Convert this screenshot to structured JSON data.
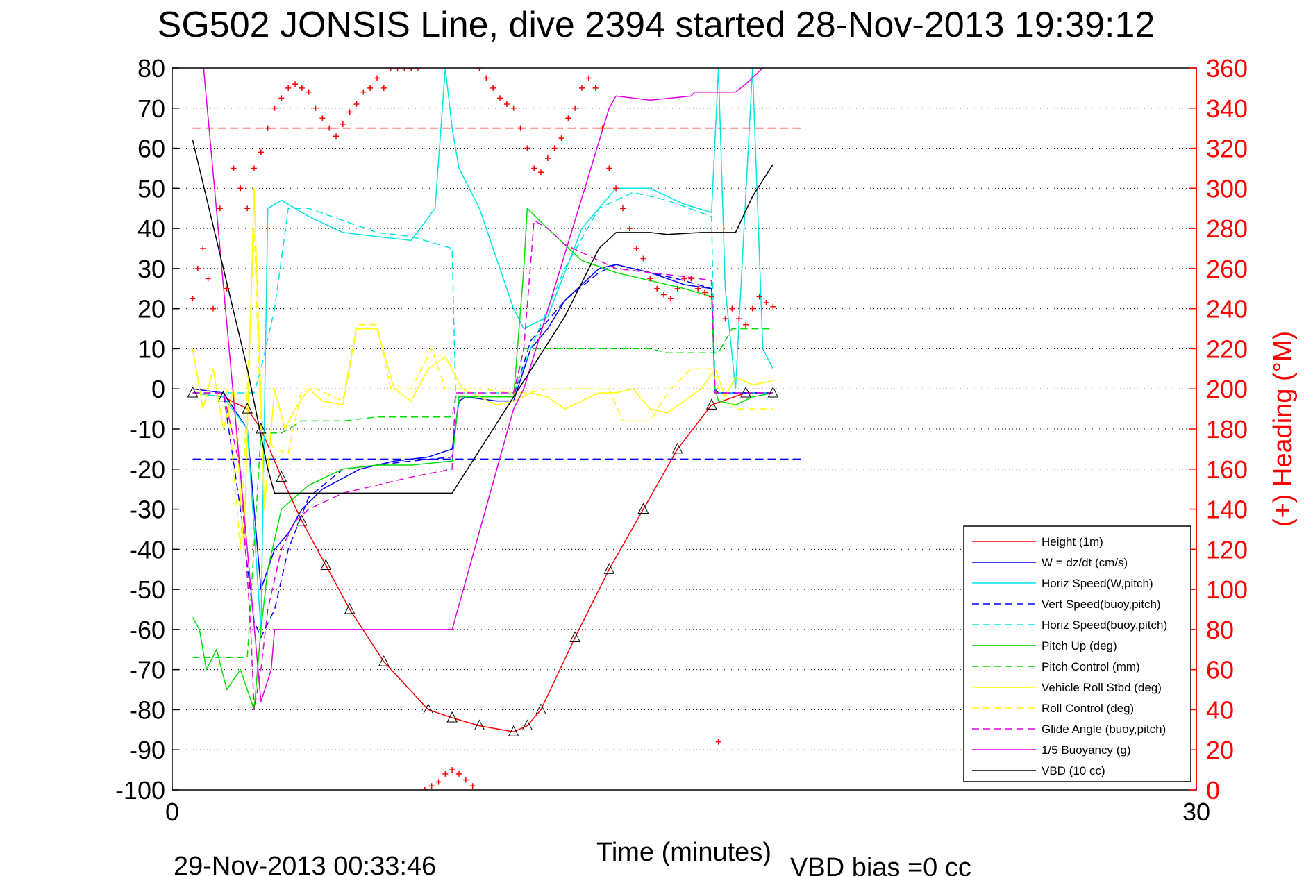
{
  "title": "SG502 JONSIS Line, dive 2394 started 28-Nov-2013 19:39:12",
  "footer": {
    "timestamp": "29-Nov-2013 00:33:46",
    "vbd_bias": "VBD bias =0 cc"
  },
  "colors": {
    "height": "#ff0000",
    "w": "#0000ff",
    "horiz_speed": "#00e5e5",
    "vert_speed_model": "#0000ff",
    "horiz_speed_model": "#00e5e5",
    "pitch": "#00e000",
    "pitch_control": "#00e000",
    "roll": "#ffff00",
    "roll_control": "#ffff00",
    "glide_angle": "#e000e0",
    "buoyancy": "#e000e0",
    "vbd": "#000000",
    "heading": "#ff0000"
  },
  "chart_data": {
    "type": "line",
    "xlabel": "Time (minutes)",
    "ylabel": "",
    "ylabel_right": "(+) Heading (°M)",
    "xlim": [
      0,
      30
    ],
    "ylim": [
      -100,
      80
    ],
    "ylim_right": [
      0,
      360
    ],
    "x_ticks": [
      0,
      30
    ],
    "y_ticks": [
      80,
      70,
      60,
      50,
      40,
      30,
      20,
      10,
      0,
      -10,
      -20,
      -30,
      -40,
      -50,
      -60,
      -70,
      -80,
      -90,
      -100
    ],
    "y_ticks_right": [
      360,
      340,
      320,
      300,
      280,
      260,
      240,
      220,
      200,
      180,
      160,
      140,
      120,
      100,
      80,
      60,
      40,
      20,
      0
    ],
    "grid": "horizontal dotted",
    "legend_position": "bottom-right",
    "reference_lines": [
      {
        "name": "heading target",
        "axis": "right",
        "y": 330,
        "x": [
          0.6,
          18.5
        ],
        "style": "dashed",
        "color": "#ff0000"
      },
      {
        "name": "roll reference",
        "axis": "left",
        "y": -17.5,
        "x": [
          0.6,
          18.5
        ],
        "style": "dashed",
        "color": "#0000ff"
      }
    ],
    "series": [
      {
        "name": "Height (1m)",
        "style": "solid",
        "key": "height",
        "x": [
          0.6,
          1.5,
          2.2,
          2.6,
          3.2,
          3.8,
          4.5,
          5.2,
          6.2,
          7.5,
          8.2,
          9.0,
          10.0,
          10.4,
          10.8,
          11.8,
          12.8,
          13.8,
          14.8,
          15.8,
          16.8,
          17.6
        ],
        "y": [
          -1,
          -2,
          -5,
          -10,
          -22,
          -33,
          -44,
          -55,
          -68,
          -80,
          -82,
          -84,
          -85.5,
          -84,
          -80,
          -62,
          -45,
          -30,
          -15,
          -4,
          -1,
          -1
        ]
      },
      {
        "name": "W = dz/dt (cm/s)",
        "style": "solid",
        "key": "w",
        "x": [
          0.6,
          1.5,
          2.2,
          2.6,
          3.0,
          3.4,
          3.8,
          4.4,
          5.5,
          6.5,
          7.5,
          8.2,
          8.4,
          8.6,
          9.5,
          10.0,
          10.5,
          11.0,
          11.5,
          12.5,
          13.0,
          14.0,
          15.0,
          15.8,
          15.9,
          16.0,
          16.5,
          17.6
        ],
        "y": [
          0,
          -1,
          -10,
          -50,
          -40,
          -36,
          -30,
          -25,
          -20,
          -18,
          -17,
          -15,
          -3,
          -2,
          -3,
          -3,
          10,
          15,
          22,
          30,
          31,
          29,
          26,
          25,
          0,
          -1,
          -1,
          -1
        ]
      },
      {
        "name": "Horiz Speed(W,pitch)",
        "style": "solid",
        "key": "horiz_speed",
        "x": [
          0.6,
          1.5,
          2.2,
          2.6,
          2.8,
          3.2,
          4.0,
          5.0,
          6.0,
          7.0,
          7.7,
          8.0,
          8.2,
          8.4,
          9.0,
          9.6,
          10.0,
          10.3,
          11.0,
          12.0,
          13.0,
          14.0,
          15.0,
          15.8,
          16.0,
          16.2,
          16.5,
          17.0,
          17.3,
          17.6
        ],
        "y": [
          -1,
          -2,
          -10,
          -60,
          45,
          47,
          43,
          39,
          38,
          37,
          45,
          80,
          65,
          55,
          45,
          30,
          20,
          15,
          18,
          40,
          50,
          50,
          46,
          44,
          80,
          25,
          0,
          80,
          10,
          5
        ]
      },
      {
        "name": "Vert Speed(buoy,pitch)",
        "style": "dashed",
        "key": "vert_speed_model",
        "x": [
          0.6,
          1.5,
          2.0,
          2.4,
          2.6,
          3.0,
          3.4,
          4.0,
          5.0,
          6.0,
          7.0,
          8.2,
          8.4,
          10.0,
          10.5,
          11.5,
          12.5,
          13.0,
          14.0,
          15.0,
          15.8,
          15.9,
          17.6
        ],
        "y": [
          -1,
          -1,
          -30,
          -58,
          -62,
          -55,
          -40,
          -27,
          -20,
          -19,
          -18,
          -17,
          -2,
          -2,
          12,
          22,
          29,
          31,
          29,
          27,
          25,
          -1,
          -1
        ]
      },
      {
        "name": "Horiz Speed(buoy,pitch)",
        "style": "dashed",
        "key": "horiz_speed_model",
        "x": [
          0.6,
          2.4,
          2.6,
          3.0,
          3.4,
          4.0,
          5.0,
          6.0,
          7.0,
          8.2,
          8.3,
          10.0,
          10.5,
          11.5,
          12.5,
          13.5,
          14.5,
          15.8,
          15.9,
          17.6
        ],
        "y": [
          -1,
          -1,
          5,
          20,
          45,
          45,
          42,
          39,
          38,
          35,
          -1,
          -1,
          10,
          30,
          45,
          49,
          47,
          43,
          -1,
          -1
        ]
      },
      {
        "name": "Pitch Up (deg)",
        "style": "solid",
        "key": "pitch",
        "x": [
          0.6,
          0.8,
          1.0,
          1.3,
          1.6,
          2.0,
          2.4,
          2.6,
          2.8,
          3.2,
          3.6,
          4.0,
          5.0,
          6.0,
          7.0,
          8.2,
          8.4,
          10.0,
          10.3,
          10.4,
          11.0,
          11.5,
          12.0,
          13.0,
          14.0,
          15.0,
          15.8,
          15.9,
          16.0,
          16.5,
          17.0,
          17.6
        ],
        "y": [
          -57,
          -60,
          -70,
          -65,
          -75,
          -70,
          -80,
          -60,
          -45,
          -30,
          -27,
          -24,
          -20,
          -19,
          -19,
          -18,
          -2,
          -2,
          30,
          45,
          40,
          36,
          32,
          29,
          27,
          25,
          23,
          0,
          -3,
          -4,
          -2,
          -1
        ]
      },
      {
        "name": "Pitch Control (mm)",
        "style": "dashed",
        "key": "pitch_control",
        "x": [
          0.6,
          2.2,
          2.6,
          3.2,
          3.8,
          4.2,
          5.0,
          6.0,
          7.0,
          8.2,
          8.3,
          10.0,
          10.3,
          11.0,
          14.0,
          14.5,
          16.0,
          16.4,
          16.8,
          17.6
        ],
        "y": [
          -67,
          -67,
          -11,
          -11,
          -8,
          -8,
          -8,
          -7,
          -7,
          -7,
          -2,
          -2,
          10,
          10,
          10,
          9,
          9,
          15,
          15,
          15
        ]
      },
      {
        "name": "Vehicle Roll Stbd (deg)",
        "style": "solid",
        "key": "roll",
        "x": [
          0.6,
          0.9,
          1.2,
          1.5,
          1.8,
          2.1,
          2.4,
          2.7,
          3.0,
          3.3,
          3.6,
          4.0,
          4.4,
          5.0,
          5.4,
          6.0,
          6.5,
          7.0,
          7.5,
          8.0,
          8.5,
          9.0,
          9.5,
          10.0,
          10.5,
          11.0,
          11.5,
          12.0,
          12.5,
          13.0,
          13.5,
          14.0,
          14.5,
          15.0,
          15.5,
          15.9,
          16.2,
          16.5,
          17.0,
          17.6
        ],
        "y": [
          10,
          -5,
          5,
          -10,
          0,
          -40,
          50,
          -30,
          0,
          -10,
          -5,
          0,
          -3,
          -4,
          15,
          15,
          0,
          -3,
          5,
          8,
          0,
          -2,
          -4,
          -3,
          -1,
          -2,
          -5,
          -3,
          -1,
          -1,
          0,
          -5,
          -6,
          -3,
          0,
          5,
          -2,
          3,
          1,
          2
        ]
      },
      {
        "name": "Roll Control (deg)",
        "style": "dashed",
        "key": "roll_control",
        "x": [
          0.6,
          1.6,
          2.0,
          2.4,
          2.6,
          3.0,
          3.4,
          3.8,
          4.2,
          5.0,
          5.4,
          6.0,
          6.4,
          7.0,
          7.6,
          8.0,
          8.4,
          9.0,
          10.0,
          10.4,
          11.0,
          12.0,
          12.8,
          13.2,
          14.0,
          14.6,
          15.2,
          15.8,
          16.0,
          16.5,
          17.0,
          17.6
        ],
        "y": [
          0,
          0,
          -40,
          40,
          -10,
          -15,
          -16,
          0,
          0,
          -3,
          16,
          16,
          0,
          0,
          10,
          0,
          0,
          0,
          -1,
          -1,
          0,
          0,
          0,
          -8,
          -8,
          0,
          5,
          5,
          0,
          -5,
          -5,
          -5
        ]
      },
      {
        "name": "Glide Angle (buoy,pitch)",
        "style": "dashed",
        "key": "glide_angle",
        "x": [
          0.6,
          1.5,
          2.0,
          2.3,
          2.4,
          2.6,
          2.8,
          3.2,
          3.6,
          4.0,
          4.5,
          5.0,
          6.0,
          7.0,
          8.2,
          8.3,
          10.0,
          10.3,
          10.6,
          11.0,
          11.5,
          12.0,
          13.0,
          14.0,
          15.0,
          15.8,
          15.9,
          17.6
        ],
        "y": [
          -1,
          -1,
          -20,
          -60,
          -80,
          -70,
          -55,
          -40,
          -33,
          -30,
          -28,
          -26,
          -24,
          -22,
          -20,
          -1,
          -1,
          10,
          42,
          40,
          36,
          34,
          30,
          29,
          28,
          27,
          -1,
          -1
        ]
      },
      {
        "name": "1/5 Buoyancy (g)",
        "style": "solid",
        "key": "buoyancy",
        "x": [
          0.6,
          2.2,
          2.6,
          2.9,
          3.0,
          8.2,
          10.0,
          10.3,
          12.8,
          13.0,
          14.0,
          15.2,
          15.3,
          16.5,
          16.8,
          17.3
        ],
        "y": [
          110,
          -40,
          -78,
          -70,
          -60,
          -60,
          -5,
          0,
          70,
          73,
          72,
          73,
          74,
          74,
          76,
          80
        ]
      },
      {
        "name": "VBD (10 cc)",
        "style": "solid",
        "key": "vbd",
        "x": [
          0.6,
          1.5,
          2.2,
          2.8,
          3.0,
          8.2,
          10.0,
          11.5,
          12.5,
          13.0,
          14.0,
          14.5,
          15.5,
          16.5,
          17.0,
          17.6
        ],
        "y": [
          62,
          30,
          5,
          -20,
          -26,
          -26,
          -2,
          18,
          35,
          39,
          39,
          38.5,
          39,
          39,
          48,
          56
        ]
      }
    ],
    "heading_markers": {
      "name": "Heading (+)",
      "axis": "right",
      "x": [
        0.6,
        0.75,
        0.9,
        1.05,
        1.2,
        1.4,
        1.6,
        1.8,
        2.0,
        2.2,
        2.4,
        2.6,
        2.8,
        3.0,
        3.2,
        3.4,
        3.6,
        3.8,
        4.0,
        4.2,
        4.4,
        4.6,
        4.8,
        5.0,
        5.2,
        5.4,
        5.6,
        5.8,
        6.0,
        6.2,
        6.4,
        6.6,
        6.8,
        7.0,
        7.2,
        7.4,
        7.6,
        7.8,
        8.0,
        8.2,
        8.4,
        8.6,
        8.8,
        9.0,
        9.2,
        9.4,
        9.6,
        9.8,
        10.0,
        10.2,
        10.4,
        10.6,
        10.8,
        11.0,
        11.2,
        11.4,
        11.6,
        11.8,
        12.0,
        12.2,
        12.4,
        12.6,
        12.8,
        13.0,
        13.2,
        13.4,
        13.6,
        13.8,
        14.0,
        14.2,
        14.4,
        14.6,
        14.8,
        15.0,
        15.2,
        15.4,
        15.6,
        15.8,
        16.0,
        16.2,
        16.4,
        16.6,
        16.8,
        17.0,
        17.2,
        17.4,
        17.6
      ],
      "y": [
        245,
        260,
        270,
        255,
        240,
        290,
        250,
        310,
        300,
        290,
        310,
        318,
        330,
        340,
        345,
        350,
        352,
        350,
        348,
        340,
        335,
        330,
        326,
        332,
        338,
        342,
        348,
        350,
        355,
        350,
        360,
        360,
        360,
        360,
        360,
        0,
        2,
        4,
        8,
        10,
        8,
        5,
        2,
        360,
        355,
        350,
        345,
        342,
        340,
        330,
        320,
        310,
        308,
        315,
        320,
        325,
        335,
        340,
        350,
        355,
        350,
        330,
        310,
        300,
        290,
        280,
        270,
        265,
        255,
        250,
        247,
        245,
        250,
        255,
        255,
        250,
        248,
        246,
        24,
        235,
        240,
        235,
        232,
        240,
        246,
        243,
        241
      ]
    },
    "legend": [
      {
        "label": "Height (1m)",
        "key": "height",
        "style": "solid"
      },
      {
        "label": "W = dz/dt (cm/s)",
        "key": "w",
        "style": "solid"
      },
      {
        "label": "Horiz Speed(W,pitch)",
        "key": "horiz_speed",
        "style": "solid"
      },
      {
        "label": "Vert Speed(buoy,pitch)",
        "key": "vert_speed_model",
        "style": "dashed"
      },
      {
        "label": "Horiz Speed(buoy,pitch)",
        "key": "horiz_speed_model",
        "style": "dashed"
      },
      {
        "label": "Pitch Up (deg)",
        "key": "pitch",
        "style": "solid"
      },
      {
        "label": "Pitch Control (mm)",
        "key": "pitch_control",
        "style": "dashed"
      },
      {
        "label": "Vehicle Roll Stbd (deg)",
        "key": "roll",
        "style": "solid"
      },
      {
        "label": "Roll Control (deg)",
        "key": "roll_control",
        "style": "dashed"
      },
      {
        "label": "Glide Angle (buoy,pitch)",
        "key": "glide_angle",
        "style": "dashed"
      },
      {
        "label": "1/5 Buoyancy (g)",
        "key": "buoyancy",
        "style": "solid"
      },
      {
        "label": "VBD (10 cc)",
        "key": "vbd",
        "style": "solid"
      }
    ]
  }
}
